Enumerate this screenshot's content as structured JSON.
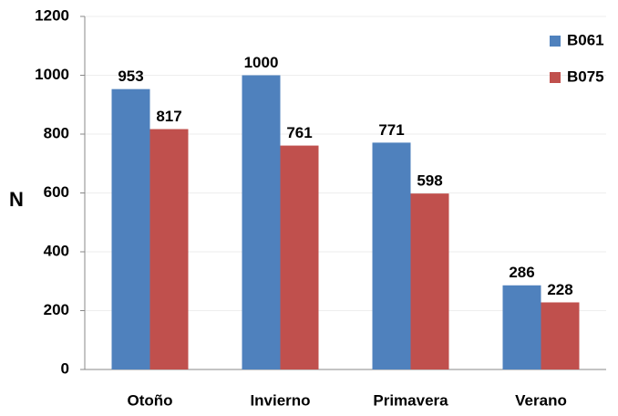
{
  "chart_data": {
    "type": "bar",
    "y_label": "N",
    "categories": [
      "Otoño",
      "Invierno",
      "Primavera",
      "Verano"
    ],
    "series": [
      {
        "name": "B061",
        "color": "#4f81bd",
        "values": [
          953,
          1000,
          771,
          286
        ]
      },
      {
        "name": "B075",
        "color": "#c0504d",
        "values": [
          817,
          761,
          598,
          228
        ]
      }
    ],
    "ylim": [
      0,
      1200
    ],
    "yticks": [
      0,
      200,
      400,
      600,
      800,
      1000,
      1200
    ],
    "grid": true,
    "legend": "top-right"
  }
}
